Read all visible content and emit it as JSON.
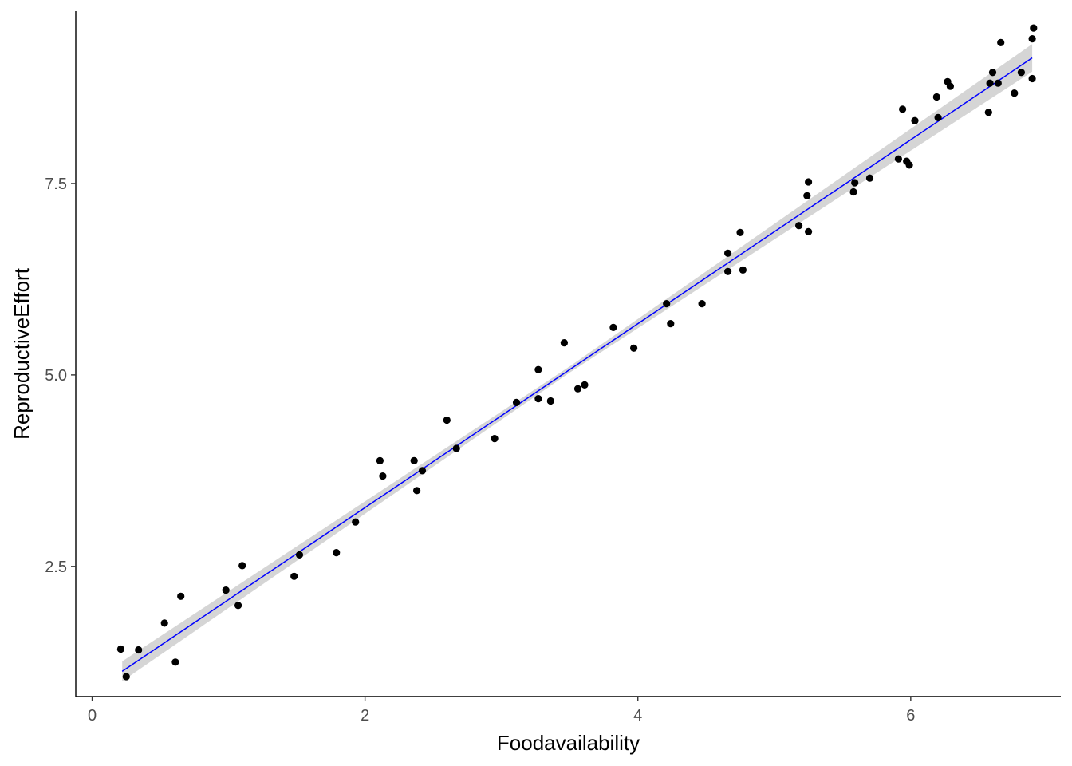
{
  "chart_data": {
    "type": "scatter",
    "xlabel": "Foodavailability",
    "ylabel": "ReproductiveEffort",
    "xlim": [
      -0.12,
      7.1
    ],
    "ylim": [
      0.8,
      9.75
    ],
    "xticks": [
      0,
      2,
      4,
      6
    ],
    "xtick_labels": [
      "0",
      "2",
      "4",
      "6"
    ],
    "yticks": [
      2.5,
      5.0,
      7.5
    ],
    "ytick_labels": [
      "2.5",
      "5.0",
      "7.5"
    ],
    "grid": false,
    "points": [
      {
        "x": 0.21,
        "y": 1.42
      },
      {
        "x": 0.25,
        "y": 1.06
      },
      {
        "x": 0.34,
        "y": 1.41
      },
      {
        "x": 0.53,
        "y": 1.76
      },
      {
        "x": 0.61,
        "y": 1.25
      },
      {
        "x": 0.65,
        "y": 2.11
      },
      {
        "x": 0.98,
        "y": 2.19
      },
      {
        "x": 1.07,
        "y": 1.99
      },
      {
        "x": 1.1,
        "y": 2.51
      },
      {
        "x": 1.48,
        "y": 2.37
      },
      {
        "x": 1.52,
        "y": 2.65
      },
      {
        "x": 1.79,
        "y": 2.68
      },
      {
        "x": 1.93,
        "y": 3.08
      },
      {
        "x": 2.11,
        "y": 3.88
      },
      {
        "x": 2.13,
        "y": 3.68
      },
      {
        "x": 2.36,
        "y": 3.88
      },
      {
        "x": 2.38,
        "y": 3.49
      },
      {
        "x": 2.42,
        "y": 3.75
      },
      {
        "x": 2.6,
        "y": 4.41
      },
      {
        "x": 2.67,
        "y": 4.04
      },
      {
        "x": 2.95,
        "y": 4.17
      },
      {
        "x": 3.11,
        "y": 4.64
      },
      {
        "x": 3.27,
        "y": 5.07
      },
      {
        "x": 3.27,
        "y": 4.69
      },
      {
        "x": 3.36,
        "y": 4.66
      },
      {
        "x": 3.46,
        "y": 5.42
      },
      {
        "x": 3.56,
        "y": 4.82
      },
      {
        "x": 3.61,
        "y": 4.87
      },
      {
        "x": 3.82,
        "y": 5.62
      },
      {
        "x": 3.97,
        "y": 5.35
      },
      {
        "x": 4.21,
        "y": 5.93
      },
      {
        "x": 4.24,
        "y": 5.67
      },
      {
        "x": 4.47,
        "y": 5.93
      },
      {
        "x": 4.66,
        "y": 6.59
      },
      {
        "x": 4.66,
        "y": 6.35
      },
      {
        "x": 4.75,
        "y": 6.86
      },
      {
        "x": 4.77,
        "y": 6.37
      },
      {
        "x": 5.18,
        "y": 6.95
      },
      {
        "x": 5.24,
        "y": 7.34
      },
      {
        "x": 5.25,
        "y": 7.52
      },
      {
        "x": 5.25,
        "y": 6.87
      },
      {
        "x": 5.58,
        "y": 7.39
      },
      {
        "x": 5.59,
        "y": 7.51
      },
      {
        "x": 5.7,
        "y": 7.57
      },
      {
        "x": 5.91,
        "y": 7.82
      },
      {
        "x": 5.94,
        "y": 8.47
      },
      {
        "x": 5.97,
        "y": 7.79
      },
      {
        "x": 5.99,
        "y": 7.74
      },
      {
        "x": 6.03,
        "y": 8.32
      },
      {
        "x": 6.19,
        "y": 8.63
      },
      {
        "x": 6.2,
        "y": 8.36
      },
      {
        "x": 6.27,
        "y": 8.83
      },
      {
        "x": 6.29,
        "y": 8.77
      },
      {
        "x": 6.57,
        "y": 8.43
      },
      {
        "x": 6.58,
        "y": 8.81
      },
      {
        "x": 6.6,
        "y": 8.95
      },
      {
        "x": 6.64,
        "y": 8.81
      },
      {
        "x": 6.66,
        "y": 9.34
      },
      {
        "x": 6.76,
        "y": 8.68
      },
      {
        "x": 6.81,
        "y": 8.95
      },
      {
        "x": 6.89,
        "y": 8.87
      },
      {
        "x": 6.89,
        "y": 9.39
      },
      {
        "x": 6.9,
        "y": 9.53
      }
    ],
    "fit_line": {
      "x": [
        0.22,
        6.89
      ],
      "y": [
        1.13,
        9.14
      ],
      "color": "#0000ff"
    },
    "confidence_band": {
      "x": [
        0.22,
        3.5,
        6.89
      ],
      "lower": [
        1.0,
        5.03,
        8.96
      ],
      "upper": [
        1.26,
        5.11,
        9.32
      ],
      "color": "#bebebe"
    },
    "point_color": "#000000"
  }
}
